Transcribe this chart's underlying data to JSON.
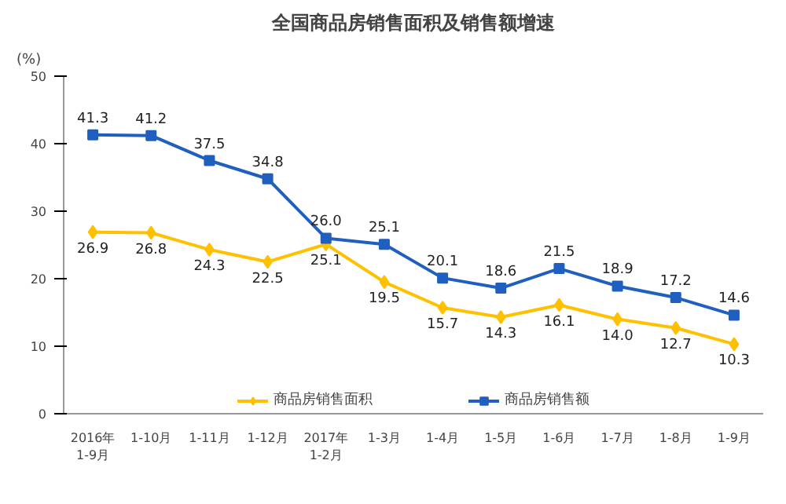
{
  "chart_data": {
    "type": "line",
    "title": "全国商品房销售面积及销售额增速",
    "ylabel": "(%)",
    "categories": [
      "2016年\n1-9月",
      "1-10月",
      "1-11月",
      "1-12月",
      "2017年\n1-2月",
      "1-3月",
      "1-4月",
      "1-5月",
      "1-6月",
      "1-7月",
      "1-8月",
      "1-9月"
    ],
    "series": [
      {
        "name": "商品房销售面积",
        "color": "#ffc000",
        "marker": "diamond",
        "values": [
          26.9,
          26.8,
          24.3,
          22.5,
          25.1,
          19.5,
          15.7,
          14.3,
          16.1,
          14.0,
          12.7,
          10.3
        ],
        "value_labels": [
          "26.9",
          "26.8",
          "24.3",
          "22.5",
          "25.1",
          "19.5",
          "15.7",
          "14.3",
          "16.1",
          "14.0",
          "12.7",
          "10.3"
        ]
      },
      {
        "name": "商品房销售额",
        "color": "#1f5fbf",
        "marker": "square",
        "values": [
          41.3,
          41.2,
          37.5,
          34.8,
          26.0,
          25.1,
          20.1,
          18.6,
          21.5,
          18.9,
          17.2,
          14.6
        ],
        "value_labels": [
          "41.3",
          "41.2",
          "37.5",
          "34.8",
          "26.0",
          "25.1",
          "20.1",
          "18.6",
          "21.5",
          "18.9",
          "17.2",
          "14.6"
        ]
      }
    ],
    "ylim": [
      0,
      50
    ],
    "yticks": [
      0,
      10,
      20,
      30,
      40,
      50
    ],
    "grid": false,
    "legend": "bottom",
    "line_style": "solid"
  }
}
